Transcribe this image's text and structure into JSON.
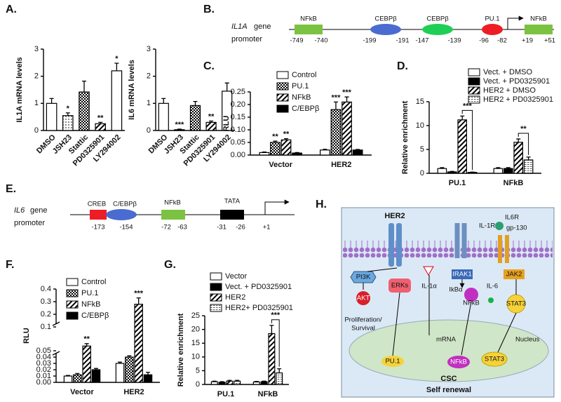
{
  "panel_labels": [
    "A.",
    "B.",
    "C.",
    "D.",
    "E.",
    "F.",
    "G.",
    "H."
  ],
  "chart_data": [
    {
      "type": "bar",
      "y_label": "IL1A mRNA levels",
      "categories": [
        "DMSO",
        "JSH23",
        "Stattic",
        "PD0325901",
        "LY294002"
      ],
      "values": [
        1.0,
        0.55,
        1.42,
        0.25,
        2.2
      ],
      "errors": [
        0.18,
        0.1,
        0.4,
        0.05,
        0.28
      ],
      "patterns": [
        "white",
        "dots",
        "checker",
        "stripes",
        "white"
      ],
      "significance": [
        null,
        "*",
        null,
        "**",
        "*"
      ],
      "ylim": [
        0,
        3
      ],
      "yticks": [
        0,
        1,
        2,
        3
      ]
    },
    {
      "type": "bar",
      "y_label": "IL6 mRNA levels",
      "categories": [
        "DMSO",
        "JSH23",
        "Stattic",
        "PD0325901",
        "LY294002"
      ],
      "values": [
        1.0,
        0.03,
        0.92,
        0.3,
        1.45
      ],
      "errors": [
        0.18,
        0.02,
        0.15,
        0.05,
        0.3
      ],
      "patterns": [
        "white",
        "dots",
        "checker",
        "stripes",
        "white"
      ],
      "significance": [
        null,
        "***",
        null,
        "**",
        null
      ],
      "ylim": [
        0,
        3
      ],
      "yticks": [
        0,
        1,
        2,
        3
      ]
    },
    {
      "type": "grouped_bar",
      "y_label": "RLU",
      "categories": [
        "Vector",
        "HER2"
      ],
      "series": [
        {
          "name": "Control",
          "pattern": "white",
          "values": [
            0.01,
            0.02
          ],
          "errors": [
            0.002,
            0.003
          ]
        },
        {
          "name": "PU.1",
          "pattern": "checker",
          "values": [
            0.05,
            0.18
          ],
          "errors": [
            0.005,
            0.03
          ],
          "significance": [
            "**",
            "***"
          ]
        },
        {
          "name": "NFkB",
          "pattern": "stripes",
          "values": [
            0.06,
            0.21
          ],
          "errors": [
            0.005,
            0.02
          ],
          "significance": [
            "**",
            "***"
          ]
        },
        {
          "name": "C/EBPβ",
          "pattern": "black",
          "values": [
            0.008,
            0.02
          ],
          "errors": [
            0.002,
            0.002
          ]
        }
      ],
      "ylim": [
        0,
        0.25
      ],
      "yticks": [
        {
          "value": 0,
          "label": "0.00"
        },
        {
          "value": 0.05,
          "label": "0.05"
        },
        {
          "value": 0.1,
          "label": "0.10"
        },
        {
          "value": 0.15,
          "label": "0.15"
        },
        {
          "value": 0.2,
          "label": "0.20"
        },
        {
          "value": 0.25,
          "label": "0.25"
        }
      ]
    },
    {
      "type": "grouped_bar",
      "y_label": "Relative enrichment",
      "categories": [
        "PU.1",
        "NFkB"
      ],
      "bracket": true,
      "series": [
        {
          "name": "Vect. + DMSO",
          "pattern": "white",
          "values": [
            1.0,
            1.0
          ],
          "errors": [
            0.2,
            0.2
          ]
        },
        {
          "name": "Vect. + PD0325901",
          "pattern": "black",
          "values": [
            0.3,
            1.0
          ],
          "errors": [
            0.1,
            0.2
          ]
        },
        {
          "name": "HER2 + DMSO",
          "pattern": "stripes",
          "values": [
            11.2,
            6.5
          ],
          "errors": [
            0.8,
            0.7
          ]
        },
        {
          "name": "HER2 + PD0325901",
          "pattern": "dash",
          "values": [
            0.2,
            2.8
          ],
          "errors": [
            0.05,
            0.6
          ],
          "significance": [
            "***",
            "**"
          ]
        }
      ],
      "ylim": [
        0,
        15
      ],
      "yticks": [
        0,
        5,
        10,
        15
      ]
    },
    {
      "type": "grouped_bar",
      "y_label": "RLU",
      "categories": [
        "Vector",
        "HER2"
      ],
      "broken_axis": [
        0.05,
        0.1
      ],
      "series": [
        {
          "name": "Control",
          "pattern": "white",
          "values": [
            0.01,
            0.03
          ],
          "errors": [
            0.001,
            0.002
          ]
        },
        {
          "name": "PU.1",
          "pattern": "checker",
          "values": [
            0.012,
            0.04
          ],
          "errors": [
            0.002,
            0.002
          ]
        },
        {
          "name": "NFkB",
          "pattern": "stripes",
          "values": [
            0.06,
            0.28
          ],
          "errors": [
            0.005,
            0.05
          ],
          "significance": [
            "**",
            "***"
          ]
        },
        {
          "name": "C/EBPβ",
          "pattern": "black",
          "values": [
            0.02,
            0.012
          ],
          "errors": [
            0.002,
            0.004
          ]
        }
      ],
      "ylim": [
        0,
        0.4
      ],
      "yticks": [
        {
          "value": 0,
          "label": "0.00"
        },
        {
          "value": 0.01,
          "label": "0.01"
        },
        {
          "value": 0.02,
          "label": "0.02"
        },
        {
          "value": 0.03,
          "label": "0.03"
        },
        {
          "value": 0.04,
          "label": "0.04"
        },
        {
          "value": 0.05,
          "label": "0.05"
        },
        0.1,
        0.2,
        0.3,
        0.4
      ]
    },
    {
      "type": "grouped_bar",
      "y_label": "Relative enrichment",
      "categories": [
        "PU.1",
        "NFkB"
      ],
      "bracket": true,
      "series": [
        {
          "name": "Vector",
          "pattern": "white",
          "values": [
            1.0,
            0.9
          ],
          "errors": [
            0.2,
            0.2
          ]
        },
        {
          "name": "Vect. + PD0325901",
          "pattern": "black",
          "values": [
            0.8,
            1.0
          ],
          "errors": [
            0.2,
            0.2
          ]
        },
        {
          "name": "HER2",
          "pattern": "stripes",
          "values": [
            1.2,
            18.5
          ],
          "errors": [
            0.3,
            3
          ]
        },
        {
          "name": "HER2+ PD0325901",
          "pattern": "dash",
          "values": [
            1.2,
            4.2
          ],
          "errors": [
            0.3,
            1.5
          ],
          "significance": [
            null,
            "***"
          ]
        }
      ],
      "ylim": [
        0,
        25
      ],
      "yticks": [
        0,
        5,
        10,
        15,
        20,
        25
      ]
    }
  ],
  "promoter_b": {
    "gene": "IL1A",
    "title_rest": "gene",
    "title_line2": "promoter",
    "elements": [
      {
        "label": "NFkB",
        "positions": [
          "-749",
          "-740"
        ]
      },
      {
        "label": "CEBPβ",
        "positions": [
          "-199",
          "-191"
        ]
      },
      {
        "label": "CEBPβ",
        "positions": [
          "-147",
          "-139"
        ]
      },
      {
        "label": "PU.1",
        "positions": [
          "-96",
          "-82"
        ]
      },
      {
        "label": "NFkB",
        "positions": [
          "+19",
          "+51"
        ]
      }
    ]
  },
  "promoter_e": {
    "gene": "IL6",
    "title_rest": "gene",
    "title_line2": "promoter",
    "elements": [
      {
        "label": "CREB",
        "positions": [
          "-173"
        ]
      },
      {
        "label": "C/EBPβ",
        "positions": [
          "-154"
        ]
      },
      {
        "label": "NFkB",
        "positions": [
          "-72",
          "-63"
        ]
      },
      {
        "label": "TATA",
        "positions": [
          "-31",
          "-26"
        ]
      }
    ],
    "start": "+1"
  },
  "pathway_h": {
    "her2": "HER2",
    "il1r": "IL-1R",
    "il6r": "IL6R",
    "gp130": "gp-130",
    "pi3k": "PI3K",
    "akt": "AKT",
    "erks": "ERKs",
    "il1a": "IL-1α",
    "irak1": "IRAK1",
    "ikba": "IkBα",
    "nfkb": "NFkB",
    "il6": "IL-6",
    "jak2": "JAK2",
    "stat3": "STAT3",
    "prolif": "Proliferation/",
    "survival": "Survival",
    "mrna": "mRNA",
    "nucleus": "Nucleus",
    "pu1": "PU.1",
    "nfkb_n": "NFkB",
    "stat3_n": "STAT3",
    "csc": "CSC",
    "self_renewal": "Self renewal"
  }
}
